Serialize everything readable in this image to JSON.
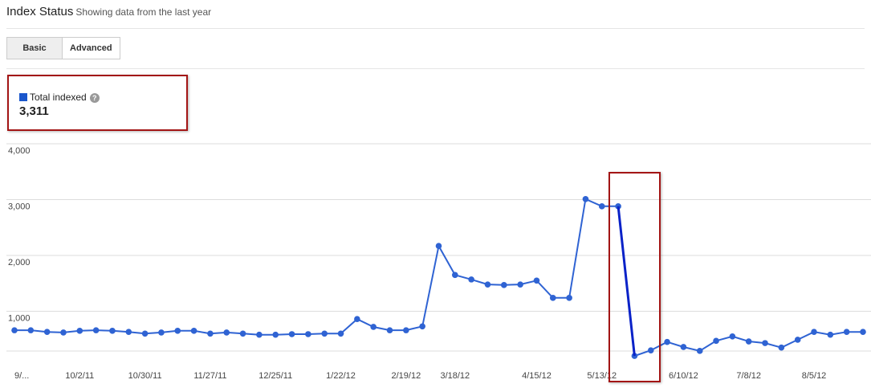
{
  "header": {
    "title": "Index Status",
    "subtitle": "Showing data from the last year"
  },
  "tabs": [
    "Basic",
    "Advanced"
  ],
  "summary": {
    "total": "3,311"
  },
  "chart_data": {
    "type": "line",
    "categories": [
      "9/...",
      null,
      null,
      null,
      "10/2/11",
      null,
      null,
      null,
      "10/30/11",
      null,
      null,
      null,
      "11/27/11",
      null,
      null,
      null,
      "12/25/11",
      null,
      null,
      null,
      "1/22/12",
      null,
      null,
      null,
      "2/19/12",
      null,
      null,
      "3/18/12",
      null,
      null,
      null,
      null,
      "4/15/12",
      null,
      null,
      null,
      "5/13/12",
      null,
      null,
      null,
      null,
      "6/10/12",
      null,
      null,
      null,
      "7/8/12",
      null,
      null,
      null,
      "8/5/12",
      null,
      null,
      null
    ],
    "series": [
      {
        "name": "Total indexed",
        "color": "#2f63d3",
        "values": [
          660,
          660,
          630,
          620,
          650,
          660,
          650,
          630,
          600,
          620,
          650,
          650,
          600,
          620,
          600,
          580,
          580,
          590,
          590,
          600,
          600,
          860,
          720,
          660,
          660,
          730,
          2170,
          1650,
          1570,
          1480,
          1470,
          1480,
          1550,
          1240,
          1240,
          3010,
          2880,
          2880,
          200,
          300,
          450,
          360,
          290,
          470,
          550,
          460,
          430,
          350,
          490,
          630,
          580,
          630,
          630
        ]
      }
    ],
    "ylim": [
      0,
      4000
    ],
    "yticks": [
      {
        "value": 1000,
        "label": "1,000"
      },
      {
        "value": 2000,
        "label": "2,000"
      },
      {
        "value": 3000,
        "label": "3,000"
      },
      {
        "value": 4000,
        "label": "4,000"
      }
    ],
    "grid": true
  }
}
